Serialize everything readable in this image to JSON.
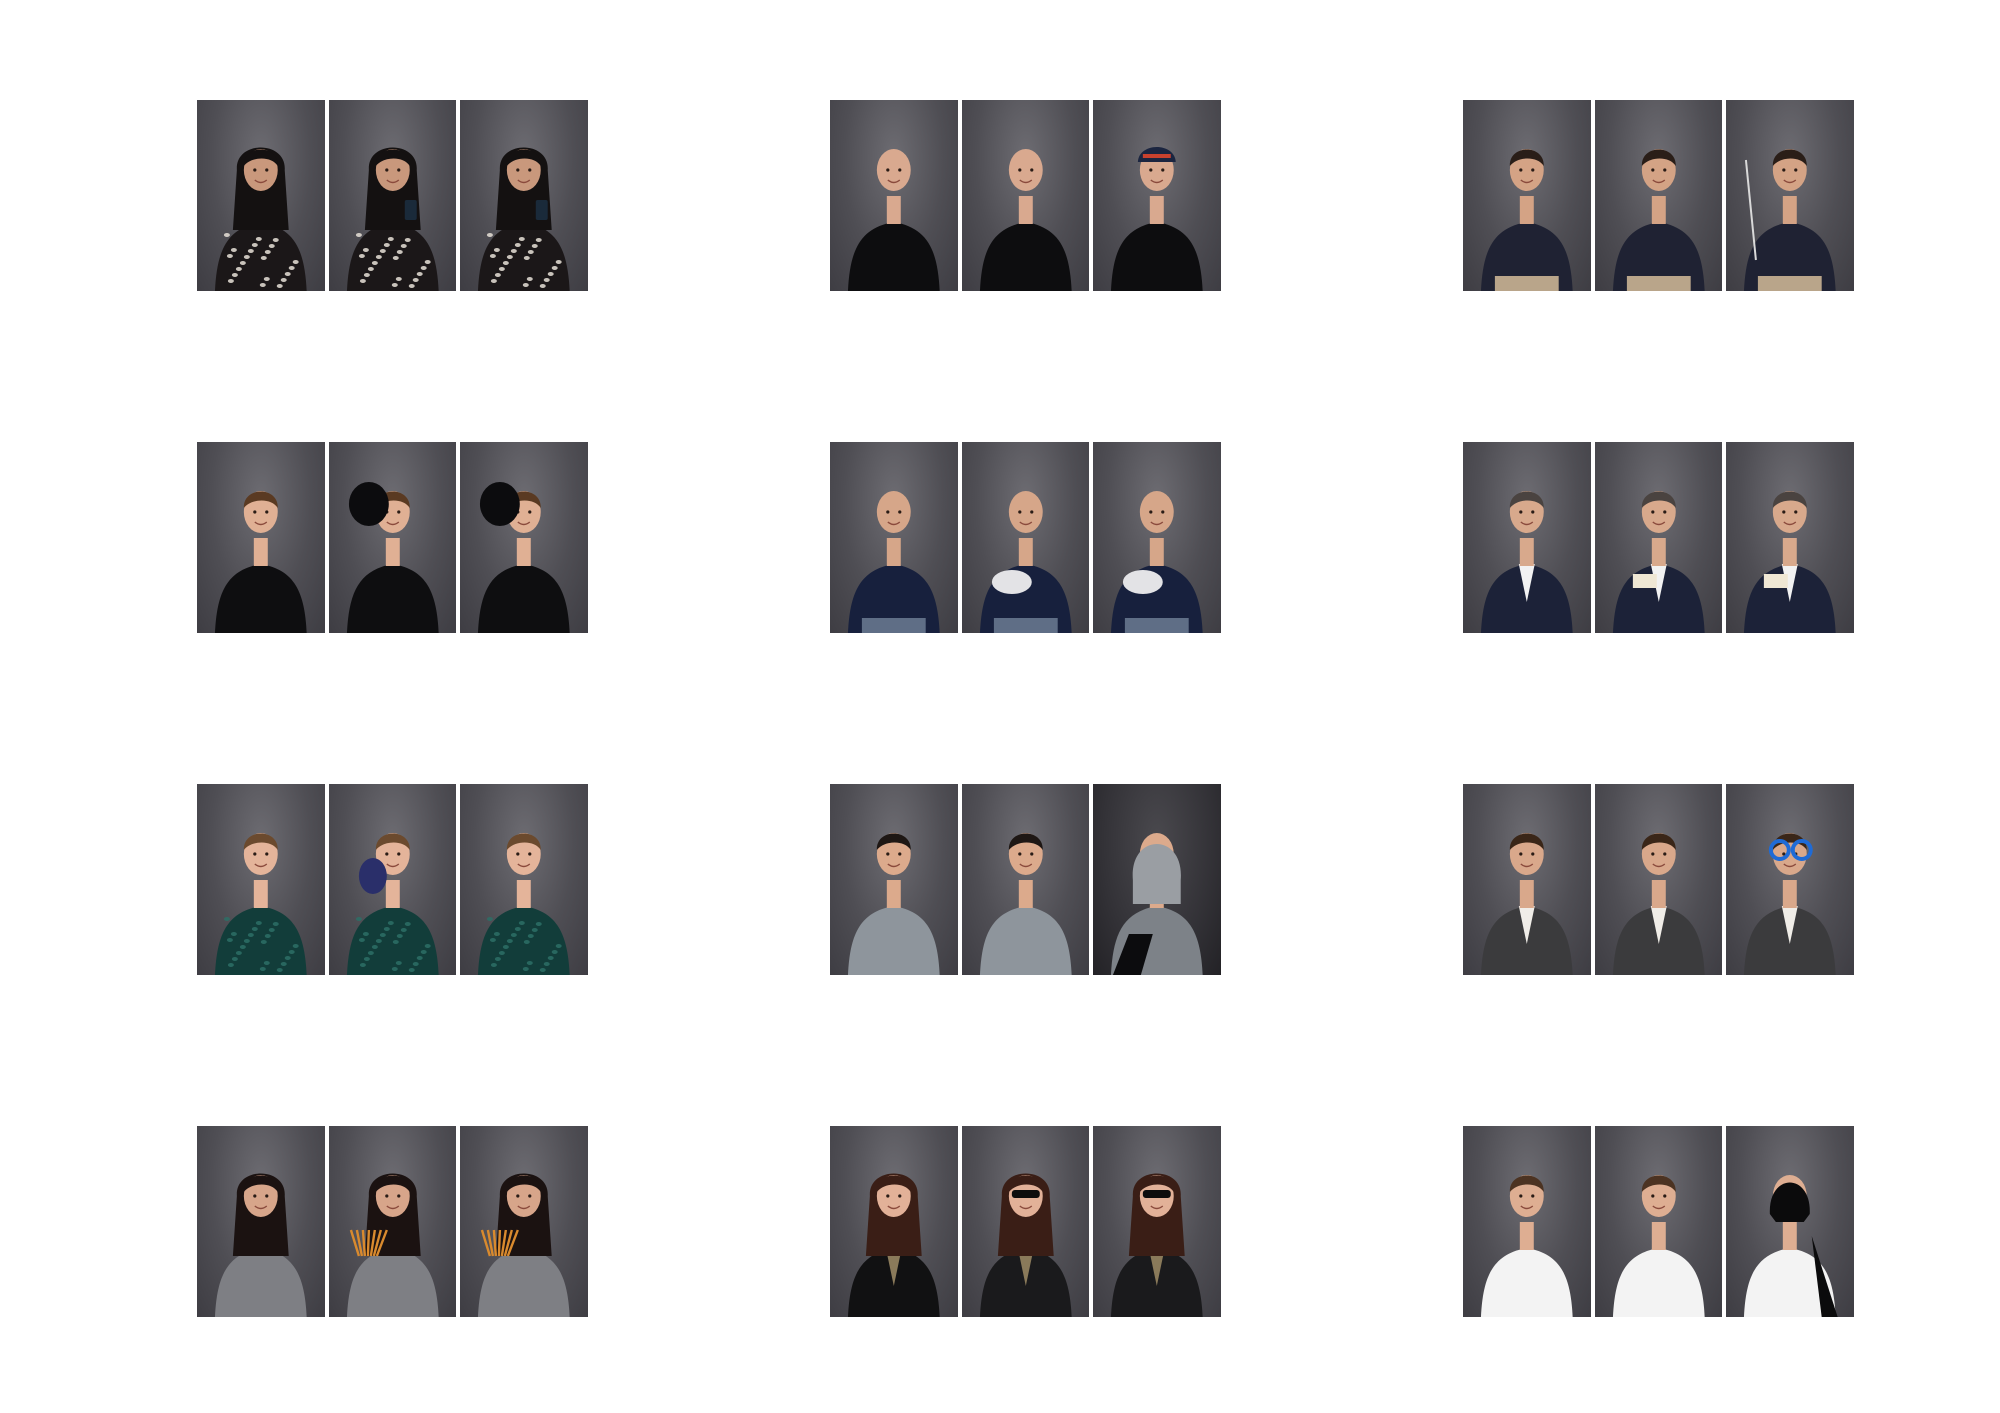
{
  "sheet": {
    "background": "#ffffff",
    "studio_backdrop": "#56555b",
    "groups": [
      {
        "id": "r1c1",
        "photos": [
          {
            "skin": "#c9987c",
            "hair": "#141111",
            "top": "#1b1718",
            "pattern": "#e8e2d8",
            "hair_style": "long-curly",
            "prop": "none"
          },
          {
            "skin": "#c9987c",
            "hair": "#141111",
            "top": "#1b1718",
            "pattern": "#e8e2d8",
            "hair_style": "long-curly",
            "prop": "phone"
          },
          {
            "skin": "#c9987c",
            "hair": "#141111",
            "top": "#1b1718",
            "pattern": "#e8e2d8",
            "hair_style": "long-curly",
            "prop": "phone"
          }
        ]
      },
      {
        "id": "r1c2",
        "photos": [
          {
            "skin": "#d9a98f",
            "hair": "none",
            "top": "#0d0d0f",
            "pattern": "none",
            "hair_style": "bald",
            "prop": "none"
          },
          {
            "skin": "#d9a98f",
            "hair": "none",
            "top": "#0d0d0f",
            "pattern": "none",
            "hair_style": "bald",
            "prop": "none"
          },
          {
            "skin": "#d9a98f",
            "hair": "none",
            "top": "#0d0d0f",
            "pattern": "none",
            "hair_style": "cap",
            "prop": "none"
          }
        ]
      },
      {
        "id": "r1c3",
        "photos": [
          {
            "skin": "#d4a385",
            "hair": "#2a1e18",
            "top": "#1f2233",
            "pattern": "none",
            "hair_style": "short",
            "prop": "none",
            "trousers": "#b9a58a"
          },
          {
            "skin": "#d4a385",
            "hair": "#2a1e18",
            "top": "#1f2233",
            "pattern": "none",
            "hair_style": "short",
            "prop": "none",
            "trousers": "#b9a58a"
          },
          {
            "skin": "#d4a385",
            "hair": "#2a1e18",
            "top": "#1f2233",
            "pattern": "none",
            "hair_style": "short",
            "prop": "tool",
            "trousers": "#b9a58a"
          }
        ]
      },
      {
        "id": "r2c1",
        "photos": [
          {
            "skin": "#e0b094",
            "hair": "#5a3a22",
            "top": "#0e0e10",
            "pattern": "none",
            "hair_style": "short",
            "prop": "none"
          },
          {
            "skin": "#e0b094",
            "hair": "#5a3a22",
            "top": "#0e0e10",
            "pattern": "none",
            "hair_style": "short",
            "prop": "helmet"
          },
          {
            "skin": "#e0b094",
            "hair": "#5a3a22",
            "top": "#0e0e10",
            "pattern": "none",
            "hair_style": "short",
            "prop": "helmet"
          }
        ]
      },
      {
        "id": "r2c2",
        "photos": [
          {
            "skin": "#d6a689",
            "hair": "none",
            "top": "#17203d",
            "pattern": "none",
            "hair_style": "bald",
            "prop": "none",
            "trousers": "#5f6e86"
          },
          {
            "skin": "#d6a689",
            "hair": "none",
            "top": "#17203d",
            "pattern": "none",
            "hair_style": "bald",
            "prop": "ball",
            "trousers": "#5f6e86"
          },
          {
            "skin": "#d6a689",
            "hair": "none",
            "top": "#17203d",
            "pattern": "none",
            "hair_style": "bald",
            "prop": "ball",
            "trousers": "#5f6e86"
          }
        ]
      },
      {
        "id": "r2c3",
        "photos": [
          {
            "skin": "#d8a98c",
            "hair": "#4a4340",
            "top": "#1c2238",
            "pattern": "#f2f2f2",
            "hair_style": "short",
            "prop": "none"
          },
          {
            "skin": "#d8a98c",
            "hair": "#4a4340",
            "top": "#1c2238",
            "pattern": "#f2f2f2",
            "hair_style": "short",
            "prop": "book"
          },
          {
            "skin": "#d8a98c",
            "hair": "#4a4340",
            "top": "#1c2238",
            "pattern": "#f2f2f2",
            "hair_style": "short",
            "prop": "book"
          }
        ]
      },
      {
        "id": "r3c1",
        "photos": [
          {
            "skin": "#e4b49a",
            "hair": "#6b4a2e",
            "top": "#123d3a",
            "pattern": "#2d6e66",
            "hair_style": "tied",
            "prop": "none"
          },
          {
            "skin": "#e4b49a",
            "hair": "#6b4a2e",
            "top": "#123d3a",
            "pattern": "#2d6e66",
            "hair_style": "tied",
            "prop": "shoe"
          },
          {
            "skin": "#e4b49a",
            "hair": "#6b4a2e",
            "top": "#123d3a",
            "pattern": "#2d6e66",
            "hair_style": "tied",
            "prop": "none"
          }
        ]
      },
      {
        "id": "r3c2",
        "photos": [
          {
            "skin": "#dcaa8c",
            "hair": "#1e1714",
            "top": "#8e959c",
            "pattern": "none",
            "hair_style": "short",
            "prop": "none"
          },
          {
            "skin": "#dcaa8c",
            "hair": "#1e1714",
            "top": "#8e959c",
            "pattern": "none",
            "hair_style": "short",
            "prop": "none"
          },
          {
            "skin": "#dcaa8c",
            "hair": "#1e1714",
            "top": "#7d8288",
            "pattern": "none",
            "hair_style": "hood",
            "prop": "laptop",
            "dark": true
          }
        ]
      },
      {
        "id": "r3c3",
        "photos": [
          {
            "skin": "#d9a88b",
            "hair": "#3a2618",
            "top": "#3b3b3d",
            "pattern": "#f0ede8",
            "hair_style": "short",
            "prop": "none"
          },
          {
            "skin": "#d9a88b",
            "hair": "#3a2618",
            "top": "#3b3b3d",
            "pattern": "#f0ede8",
            "hair_style": "short",
            "prop": "none"
          },
          {
            "skin": "#d9a88b",
            "hair": "#3a2618",
            "top": "#3b3b3d",
            "pattern": "#f0ede8",
            "hair_style": "short",
            "prop": "glasses"
          }
        ]
      },
      {
        "id": "r4c1",
        "photos": [
          {
            "skin": "#d7a58a",
            "hair": "#1b1211",
            "top": "#7e7f84",
            "pattern": "none",
            "hair_style": "long",
            "prop": "none"
          },
          {
            "skin": "#d7a58a",
            "hair": "#1b1211",
            "top": "#7e7f84",
            "pattern": "none",
            "hair_style": "long",
            "prop": "pencils"
          },
          {
            "skin": "#d7a58a",
            "hair": "#1b1211",
            "top": "#7e7f84",
            "pattern": "none",
            "hair_style": "long",
            "prop": "pencils"
          }
        ]
      },
      {
        "id": "r4c2",
        "photos": [
          {
            "skin": "#e2b198",
            "hair": "#3a1e16",
            "top": "#111112",
            "pattern": "#8a7a5a",
            "hair_style": "long",
            "prop": "none"
          },
          {
            "skin": "#e2b198",
            "hair": "#3a1e16",
            "top": "#1a1a1c",
            "pattern": "#8a7a5a",
            "hair_style": "long",
            "prop": "sunglasses"
          },
          {
            "skin": "#e2b198",
            "hair": "#3a1e16",
            "top": "#1a1a1c",
            "pattern": "#8a7a5a",
            "hair_style": "long",
            "prop": "sunglasses"
          }
        ]
      },
      {
        "id": "r4c3",
        "photos": [
          {
            "skin": "#deae92",
            "hair": "#4c3322",
            "top": "#f3f3f3",
            "pattern": "none",
            "hair_style": "short",
            "prop": "none"
          },
          {
            "skin": "#deae92",
            "hair": "#4c3322",
            "top": "#f3f3f3",
            "pattern": "none",
            "hair_style": "short",
            "prop": "none"
          },
          {
            "skin": "#deae92",
            "hair": "#4c3322",
            "top": "#f3f3f3",
            "pattern": "none",
            "hair_style": "mask",
            "prop": "cape"
          }
        ]
      }
    ]
  }
}
